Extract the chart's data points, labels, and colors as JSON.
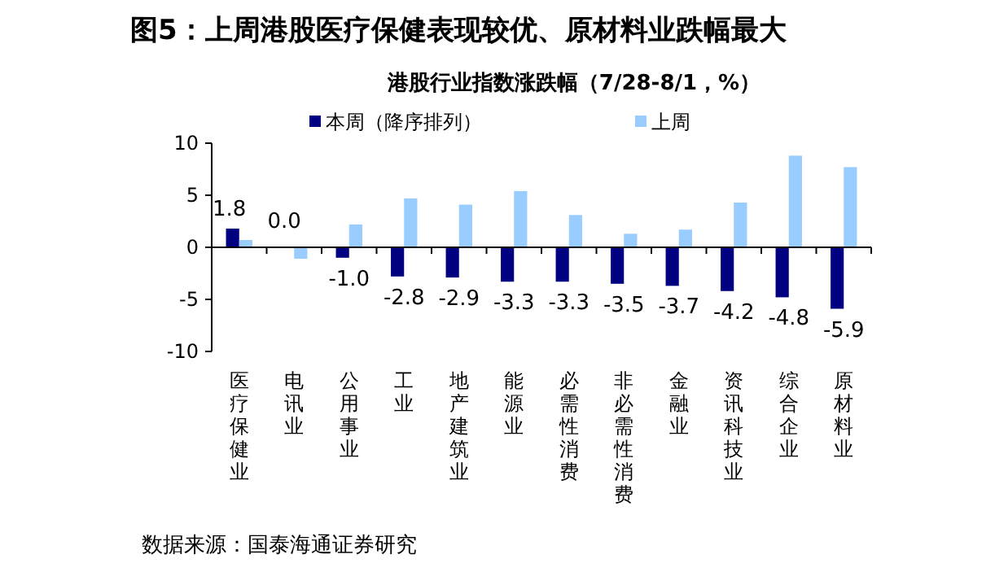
{
  "chart_data": {
    "type": "bar",
    "title": "图5：上周港股医疗保健表现较优、原材料业跌幅最大",
    "subtitle": "港股行业指数涨跌幅（7/28-8/1，%）",
    "categories": [
      "医疗保健业",
      "电讯业",
      "公用事业",
      "工业",
      "地产建筑业",
      "能源业",
      "必需性消费",
      "非必需性消费",
      "金融业",
      "资讯科技业",
      "综合企业",
      "原材料业"
    ],
    "series": [
      {
        "name": "本周（降序排列）",
        "color": "#000080",
        "values": [
          1.8,
          0.0,
          -1.0,
          -2.8,
          -2.9,
          -3.3,
          -3.3,
          -3.5,
          -3.7,
          -4.2,
          -4.8,
          -5.9
        ],
        "value_labels": [
          "1.8",
          "0.0",
          "-1.0",
          "-2.8",
          "-2.9",
          "-3.3",
          "-3.3",
          "-3.5",
          "-3.7",
          "-4.2",
          "-4.8",
          "-5.9"
        ]
      },
      {
        "name": "上周",
        "color": "#99ccff",
        "values": [
          0.7,
          -1.1,
          2.2,
          4.7,
          4.1,
          5.4,
          3.1,
          1.3,
          1.7,
          4.3,
          8.8,
          7.7
        ]
      }
    ],
    "ylim": [
      -10,
      10
    ],
    "yticks": [
      -10,
      -5,
      0,
      5,
      10
    ],
    "legend": "top",
    "annotations": [
      "数据来源：国泰海通证券研究"
    ]
  }
}
